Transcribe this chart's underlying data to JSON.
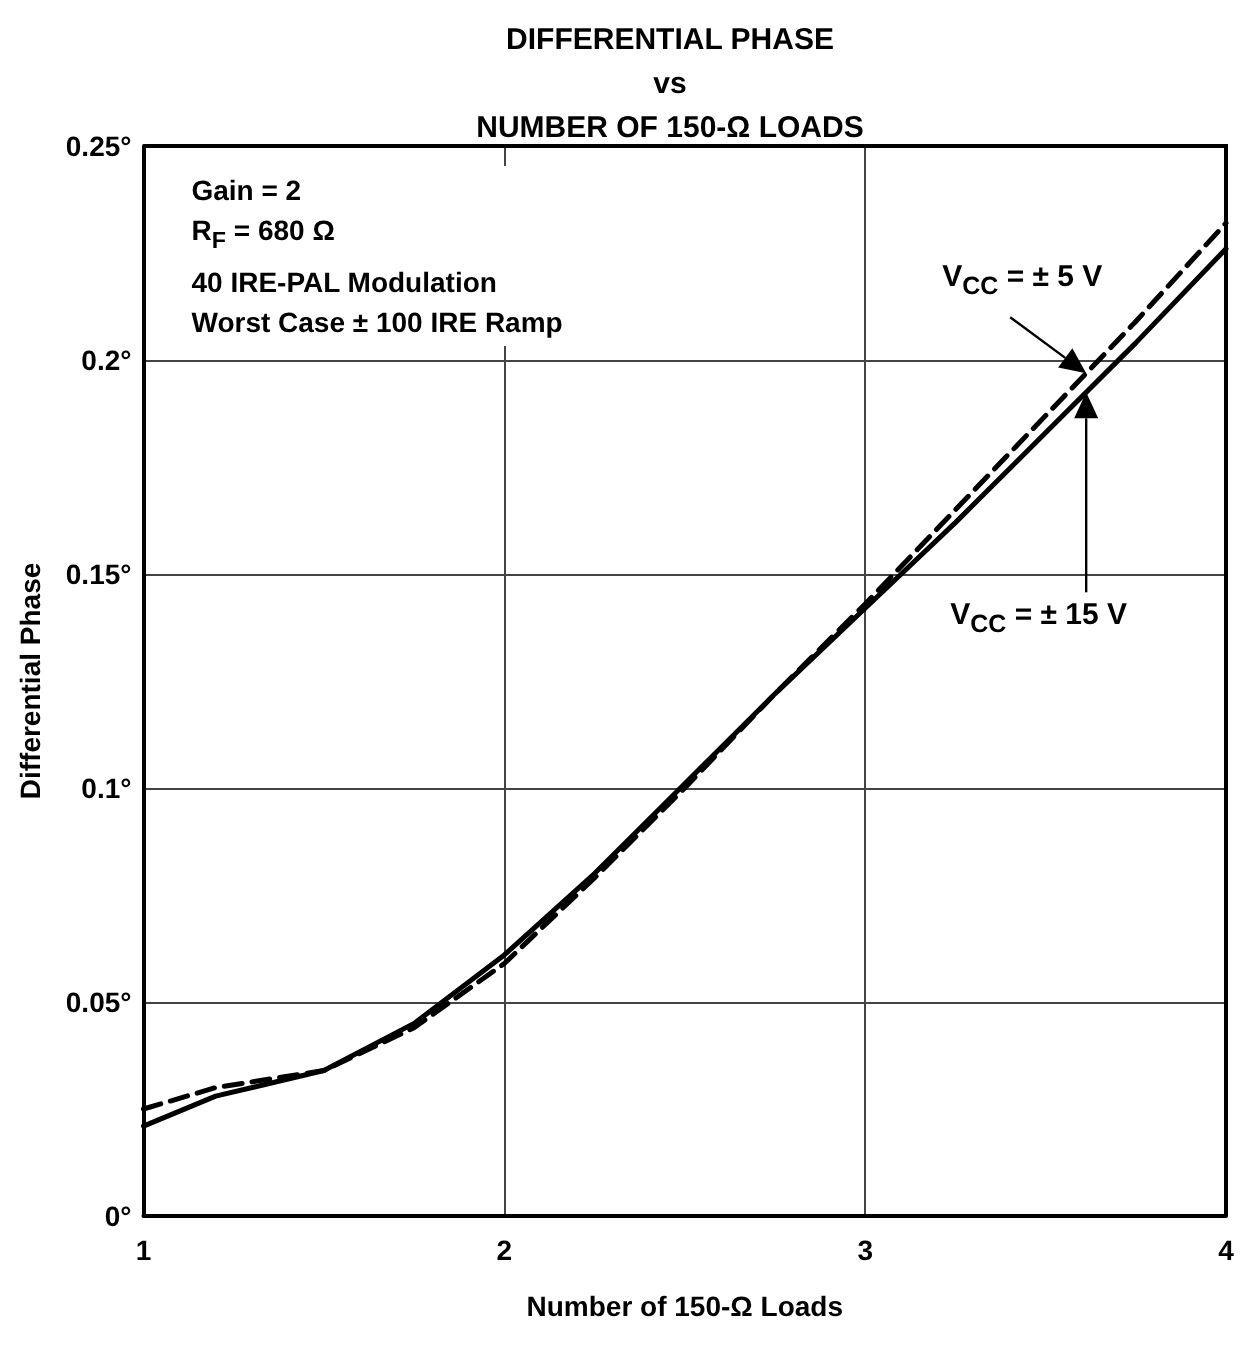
{
  "chart_data": {
    "type": "line",
    "title": "DIFFERENTIAL PHASE\nvs\nNUMBER OF 150-Ω LOADS",
    "xlabel": "Number of 150-Ω Loads",
    "ylabel": "Differential Phase",
    "annotations": [
      "Gain = 2",
      "R$_{F}$ = 680 Ω",
      "40 IRE-PAL Modulation",
      "Worst Case ± 100 IRE Ramp"
    ],
    "xlim": [
      1,
      4
    ],
    "xticks": [
      1,
      2,
      3,
      4
    ],
    "ylim": [
      0,
      0.25
    ],
    "yticks": [
      {
        "value": 0,
        "label": "0°"
      },
      {
        "value": 0.05,
        "label": "0.05°"
      },
      {
        "value": 0.1,
        "label": "0.1°"
      },
      {
        "value": 0.15,
        "label": "0.15°"
      },
      {
        "value": 0.2,
        "label": "0.2°"
      },
      {
        "value": 0.25,
        "label": "0.25°"
      }
    ],
    "grid": true,
    "legend": false,
    "marker": "none",
    "x": [
      1,
      1.2,
      1.5,
      1.75,
      2,
      2.25,
      2.5,
      2.75,
      3,
      3.25,
      3.5,
      3.75,
      4
    ],
    "series": [
      {
        "name": "V$_{CC}$ = ± 5 V",
        "color": "#000000",
        "line_style": "dashed",
        "values": [
          0.025,
          0.03,
          0.034,
          0.044,
          0.059,
          0.079,
          0.1,
          0.122,
          0.143,
          0.165,
          0.187,
          0.209,
          0.232
        ]
      },
      {
        "name": "V$_{CC}$ = ± 15 V",
        "color": "#000000",
        "line_style": "solid",
        "values": [
          0.021,
          0.028,
          0.034,
          0.045,
          0.061,
          0.08,
          0.101,
          0.122,
          0.142,
          0.162,
          0.183,
          0.204,
          0.226
        ]
      }
    ]
  }
}
